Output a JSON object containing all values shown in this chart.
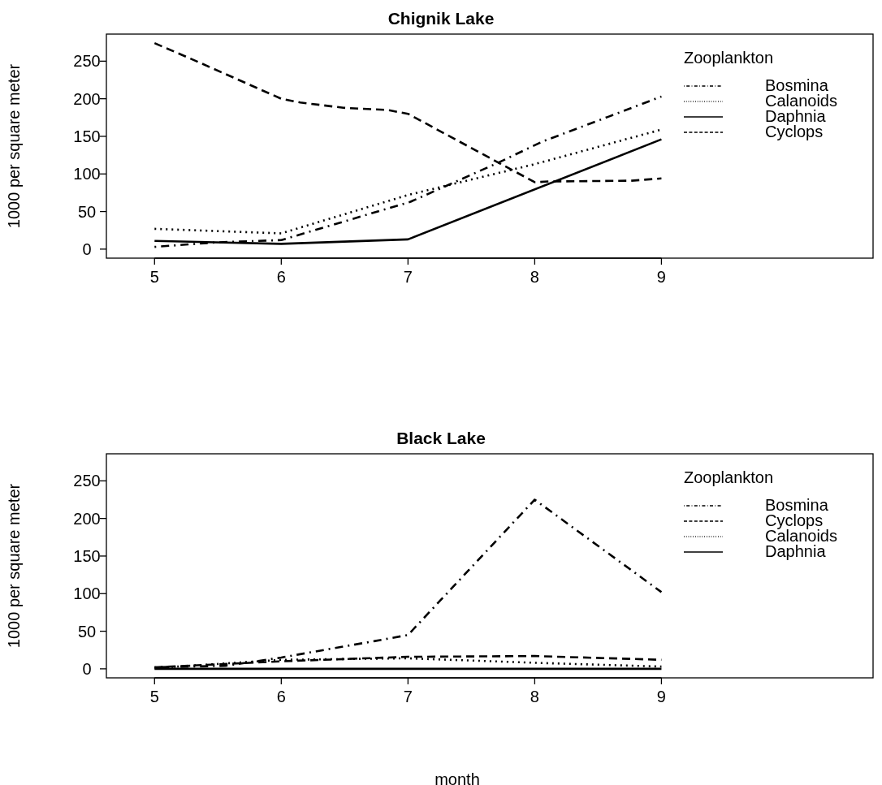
{
  "chart_data": [
    {
      "type": "line",
      "title": "Chignik Lake",
      "ylabel": "1000 per square meter",
      "legend_title": "Zooplankton",
      "legend": "top right",
      "grid": false,
      "xlim": [
        4.62,
        10.67
      ],
      "xticks": [
        5,
        6,
        7,
        8,
        9
      ],
      "ylim": [
        -12,
        286
      ],
      "yticks": [
        0,
        50,
        100,
        150,
        200,
        250
      ],
      "series": [
        {
          "name": "Bosmina",
          "color": "#000000",
          "line_style": "dashdot",
          "x": [
            5,
            5.49,
            6,
            7.02,
            7.7,
            8.06,
            8.58,
            9
          ],
          "values": [
            3,
            9,
            12,
            63,
            114,
            143,
            176,
            203
          ]
        },
        {
          "name": "Calanoids",
          "color": "#000000",
          "line_style": "dotted",
          "x": [
            5,
            6,
            7,
            8,
            9
          ],
          "values": [
            27,
            21,
            72,
            113,
            159
          ]
        },
        {
          "name": "Daphnia",
          "color": "#000000",
          "line_style": "solid",
          "x": [
            5,
            6,
            7,
            9
          ],
          "values": [
            11,
            7,
            13,
            146
          ]
        },
        {
          "name": "Cyclops",
          "color": "#000000",
          "line_style": "dashed",
          "x": [
            5,
            5.33,
            6,
            6.15,
            6.49,
            6.84,
            7,
            8,
            8.11,
            8.76,
            9
          ],
          "values": [
            274,
            250,
            200,
            195,
            188,
            185,
            180,
            89,
            90,
            91,
            94
          ]
        }
      ]
    },
    {
      "type": "line",
      "title": "Black Lake",
      "xlabel": "month",
      "ylabel": "1000 per square meter",
      "legend_title": "Zooplankton",
      "legend": "top right",
      "grid": false,
      "xlim": [
        4.62,
        10.67
      ],
      "xticks": [
        5,
        6,
        7,
        8,
        9
      ],
      "ylim": [
        -12,
        286
      ],
      "yticks": [
        0,
        50,
        100,
        150,
        200,
        250
      ],
      "series": [
        {
          "name": "Bosmina",
          "color": "#000000",
          "line_style": "dashdot",
          "x": [
            5,
            5.56,
            6,
            6.3,
            6.74,
            7,
            8,
            9
          ],
          "values": [
            2,
            4,
            15,
            24,
            37,
            45,
            225,
            102
          ]
        },
        {
          "name": "Cyclops",
          "color": "#000000",
          "line_style": "dashed",
          "x": [
            5,
            6,
            7,
            8,
            9
          ],
          "values": [
            2,
            10,
            16,
            17,
            12
          ]
        },
        {
          "name": "Calanoids",
          "color": "#000000",
          "line_style": "dotted",
          "x": [
            5,
            6,
            7,
            8,
            9
          ],
          "values": [
            1,
            12,
            14,
            8,
            3
          ]
        },
        {
          "name": "Daphnia",
          "color": "#000000",
          "line_style": "solid",
          "x": [
            5,
            6,
            7,
            8,
            9
          ],
          "values": [
            0,
            0,
            0,
            0,
            0
          ]
        }
      ]
    }
  ]
}
